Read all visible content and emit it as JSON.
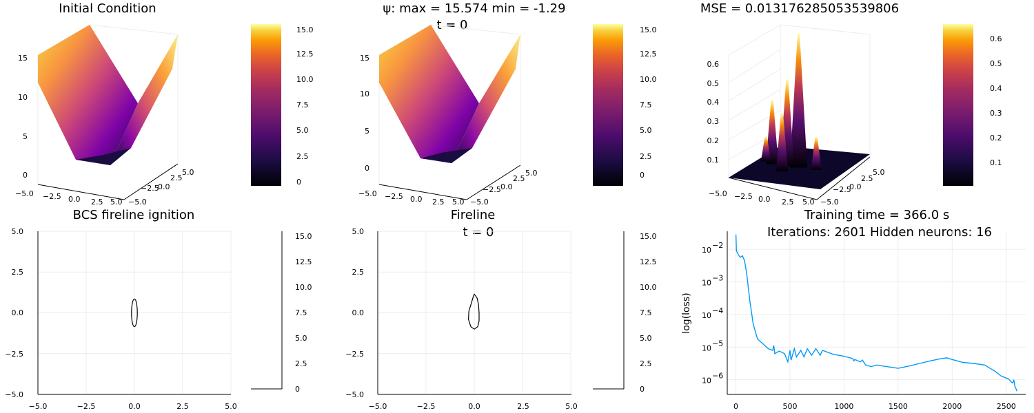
{
  "chart_data": [
    {
      "type": "surface3d",
      "title": "Initial Condition",
      "x_ticks": [
        "−5.0",
        "−2.5",
        "0.0",
        "2.5",
        "5.0"
      ],
      "y_ticks": [
        "−5.0",
        "−2.5",
        "0.0",
        "2.5",
        "5.0"
      ],
      "z_ticks": [
        "0",
        "5",
        "10",
        "15"
      ],
      "zlim": [
        0,
        15.574
      ],
      "colorbar_ticks": [
        "0",
        "2.5",
        "5.0",
        "7.5",
        "10.0",
        "12.5",
        "15.0"
      ],
      "colorbar_range": [
        -1.29,
        15.574
      ],
      "colormap": "inferno"
    },
    {
      "type": "surface3d",
      "title_line1": "ψ: max = 15.574 min = -1.29",
      "title_line2": "t = 0",
      "x_ticks": [
        "−5.0",
        "−2.5",
        "0.0",
        "2.5",
        "5.0"
      ],
      "y_ticks": [
        "−5.0",
        "−2.5",
        "0.0",
        "2.5",
        "5.0"
      ],
      "z_ticks": [
        "0",
        "5",
        "10",
        "15"
      ],
      "colorbar_ticks": [
        "0",
        "2.5",
        "5.0",
        "7.5",
        "10.0",
        "12.5",
        "15.0"
      ],
      "colorbar_range": [
        -1.29,
        15.574
      ],
      "colormap": "inferno"
    },
    {
      "type": "surface3d",
      "title": "MSE = 0.013176285053539806",
      "x_ticks": [
        "−5.0",
        "−2.5",
        "0.0",
        "2.5",
        "5.0"
      ],
      "y_ticks": [
        "−5.0",
        "−2.5",
        "0.0",
        "2.5",
        "5.0"
      ],
      "z_ticks": [
        "0.1",
        "0.2",
        "0.3",
        "0.4",
        "0.5",
        "0.6"
      ],
      "colorbar_ticks": [
        "0.1",
        "0.2",
        "0.3",
        "0.4",
        "0.5",
        "0.6"
      ],
      "colorbar_range": [
        0,
        0.66
      ],
      "colormap": "inferno",
      "peaks": [
        {
          "x": 0.0,
          "y": 0.0,
          "z": 0.65
        },
        {
          "x": -1.3,
          "y": 0.0,
          "z": 0.42
        },
        {
          "x": -3.0,
          "y": 0.0,
          "z": 0.31
        },
        {
          "x": -1.0,
          "y": -1.5,
          "z": 0.28
        },
        {
          "x": 2.0,
          "y": 0.0,
          "z": 0.16
        },
        {
          "x": -4.0,
          "y": 0.5,
          "z": 0.12
        }
      ]
    },
    {
      "type": "contour",
      "title": "BCS fireline ignition",
      "xlim": [
        -5,
        5
      ],
      "ylim": [
        -5,
        5
      ],
      "x_ticks": [
        "−5.0",
        "−2.5",
        "0.0",
        "2.5",
        "5.0"
      ],
      "y_ticks": [
        "−5.0",
        "−2.5",
        "0.0",
        "2.5",
        "5.0"
      ],
      "colorbar_ticks": [
        "0",
        "2.5",
        "5.0",
        "7.5",
        "10.0",
        "12.5",
        "15.0"
      ],
      "curve": {
        "cx": 0.0,
        "cy": 0.0,
        "rx": 0.15,
        "ry": 0.85
      }
    },
    {
      "type": "contour",
      "title_line1": "Fireline",
      "title_line2": "t = 0",
      "xlim": [
        -5,
        5
      ],
      "ylim": [
        -5,
        5
      ],
      "x_ticks": [
        "−5.0",
        "−2.5",
        "0.0",
        "2.5",
        "5.0"
      ],
      "y_ticks": [
        "−5.0",
        "−2.5",
        "0.0",
        "2.5",
        "5.0"
      ],
      "colorbar_ticks": [
        "0",
        "2.5",
        "5.0",
        "7.5",
        "10.0",
        "12.5",
        "15.0"
      ],
      "curve_points": [
        [
          0.0,
          1.15
        ],
        [
          0.15,
          0.9
        ],
        [
          0.22,
          0.5
        ],
        [
          0.25,
          0.0
        ],
        [
          0.25,
          -0.5
        ],
        [
          0.18,
          -0.85
        ],
        [
          0.0,
          -1.0
        ],
        [
          -0.18,
          -0.85
        ],
        [
          -0.3,
          -0.4
        ],
        [
          -0.28,
          0.1
        ],
        [
          -0.15,
          0.6
        ],
        [
          -0.05,
          1.0
        ],
        [
          0.0,
          1.15
        ]
      ]
    },
    {
      "type": "line",
      "title_line1": "Training time = 366.0 s",
      "title_line2": "Iterations: 2601 Hidden neurons: 16",
      "ylabel": "log(loss)",
      "y_scale": "log",
      "xlim": [
        -80,
        2680
      ],
      "ylim_log10": [
        -6.45,
        -1.45
      ],
      "x_ticks": [
        0,
        500,
        1000,
        1500,
        2000,
        2500
      ],
      "x_tick_labels": [
        "0",
        "500",
        "1000",
        "1500",
        "2000",
        "2500"
      ],
      "y_ticks_exp": [
        -6,
        -5,
        -4,
        -3,
        -2
      ],
      "y_tick_bases": [
        "10",
        "10",
        "10",
        "10",
        "10"
      ],
      "y_tick_exps": [
        "−6",
        "−5",
        "−4",
        "−3",
        "−2"
      ],
      "series_color": "#009af9",
      "series": [
        {
          "values_log10": [
            [
              0,
              -1.55
            ],
            [
              5,
              -2.05
            ],
            [
              20,
              -2.15
            ],
            [
              40,
              -2.25
            ],
            [
              60,
              -2.2
            ],
            [
              80,
              -2.35
            ],
            [
              100,
              -2.75
            ],
            [
              130,
              -3.6
            ],
            [
              160,
              -4.3
            ],
            [
              200,
              -4.75
            ],
            [
              250,
              -4.9
            ],
            [
              300,
              -5.05
            ],
            [
              340,
              -5.1
            ],
            [
              350,
              -4.95
            ],
            [
              360,
              -5.2
            ],
            [
              400,
              -5.12
            ],
            [
              450,
              -5.2
            ],
            [
              480,
              -5.45
            ],
            [
              500,
              -5.1
            ],
            [
              510,
              -5.4
            ],
            [
              540,
              -5.05
            ],
            [
              560,
              -5.3
            ],
            [
              600,
              -5.1
            ],
            [
              630,
              -5.3
            ],
            [
              660,
              -5.05
            ],
            [
              700,
              -5.25
            ],
            [
              740,
              -5.05
            ],
            [
              780,
              -5.25
            ],
            [
              800,
              -5.1
            ],
            [
              900,
              -5.22
            ],
            [
              1000,
              -5.28
            ],
            [
              1080,
              -5.35
            ],
            [
              1090,
              -5.42
            ],
            [
              1100,
              -5.38
            ],
            [
              1150,
              -5.45
            ],
            [
              1170,
              -5.4
            ],
            [
              1200,
              -5.55
            ],
            [
              1250,
              -5.6
            ],
            [
              1300,
              -5.55
            ],
            [
              1400,
              -5.6
            ],
            [
              1500,
              -5.65
            ],
            [
              1600,
              -5.58
            ],
            [
              1700,
              -5.5
            ],
            [
              1800,
              -5.42
            ],
            [
              1900,
              -5.35
            ],
            [
              1950,
              -5.33
            ],
            [
              2000,
              -5.38
            ],
            [
              2100,
              -5.47
            ],
            [
              2200,
              -5.5
            ],
            [
              2300,
              -5.55
            ],
            [
              2400,
              -5.75
            ],
            [
              2450,
              -5.88
            ],
            [
              2500,
              -5.95
            ],
            [
              2520,
              -5.97
            ],
            [
              2540,
              -6.05
            ],
            [
              2560,
              -6.1
            ],
            [
              2570,
              -6.0
            ],
            [
              2580,
              -6.2
            ],
            [
              2600,
              -6.35
            ]
          ]
        }
      ]
    }
  ]
}
